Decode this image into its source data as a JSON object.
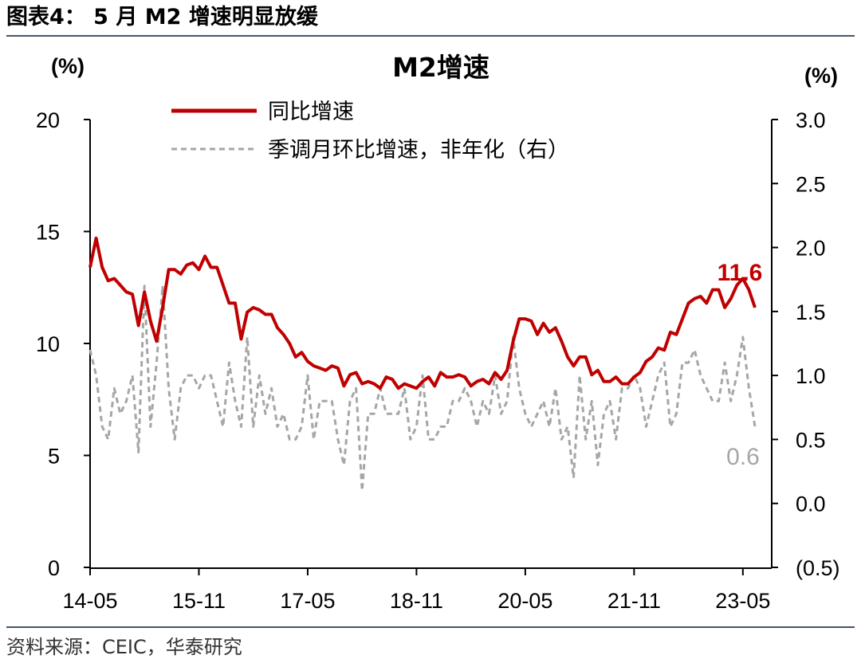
{
  "figure_title": "图表4： 5 月 M2 增速明显放缓",
  "source": "资料来源：CEIC，华泰研究",
  "chart_data": {
    "type": "line",
    "title": "M2增速",
    "y_left_unit": "(%)",
    "y_right_unit": "(%)",
    "y_left_lim": [
      0,
      20
    ],
    "y_left_ticks": [
      "0",
      "5",
      "10",
      "15",
      "20"
    ],
    "y_right_lim": [
      -0.5,
      3.0
    ],
    "y_right_ticks": [
      "(0.5)",
      "0.0",
      "0.5",
      "1.0",
      "1.5",
      "2.0",
      "2.5",
      "3.0"
    ],
    "x_tick_labels": [
      "14-05",
      "15-11",
      "17-05",
      "18-11",
      "20-05",
      "21-11",
      "23-05"
    ],
    "x_start": "2014-05",
    "grid": false,
    "legend_position": "top-left",
    "colors": {
      "yoy": "#c00000",
      "mom": "#a6a6a6",
      "axis": "#000000",
      "rule": "#44546a"
    },
    "series": [
      {
        "name": "同比增速",
        "axis": "left",
        "style": "solid",
        "values": [
          13.4,
          14.7,
          13.4,
          12.8,
          12.9,
          12.6,
          12.3,
          12.2,
          10.8,
          12.3,
          11.0,
          10.1,
          11.6,
          13.3,
          13.3,
          13.1,
          13.5,
          13.6,
          13.3,
          13.9,
          13.4,
          13.4,
          12.6,
          11.8,
          11.8,
          10.2,
          11.4,
          11.6,
          11.5,
          11.3,
          11.3,
          10.7,
          10.4,
          10.0,
          9.4,
          9.6,
          9.2,
          9.0,
          8.9,
          8.8,
          9.0,
          8.9,
          8.1,
          8.6,
          8.7,
          8.2,
          8.3,
          8.2,
          8.0,
          8.5,
          8.4,
          8.0,
          8.2,
          8.1,
          8.0,
          8.3,
          8.5,
          8.1,
          8.7,
          8.5,
          8.5,
          8.6,
          8.5,
          8.1,
          8.3,
          8.4,
          8.2,
          8.7,
          8.4,
          8.8,
          10.1,
          11.1,
          11.1,
          11.0,
          10.4,
          10.9,
          10.5,
          10.7,
          10.1,
          9.4,
          9.0,
          9.4,
          9.4,
          8.6,
          8.8,
          8.3,
          8.3,
          8.5,
          8.2,
          8.2,
          8.5,
          8.7,
          9.2,
          9.4,
          9.8,
          9.7,
          10.5,
          10.4,
          11.1,
          11.8,
          12.0,
          12.1,
          11.8,
          12.4,
          12.4,
          11.6,
          12.0,
          12.6,
          12.9,
          12.4,
          11.6
        ]
      },
      {
        "name": "季调月环比增速，非年化（右）",
        "axis": "right",
        "style": "dashed",
        "values": [
          1.2,
          1.0,
          0.6,
          0.5,
          0.9,
          0.7,
          0.8,
          1.0,
          0.4,
          1.7,
          0.6,
          1.1,
          1.7,
          0.9,
          0.5,
          0.9,
          1.0,
          1.0,
          0.9,
          1.0,
          1.0,
          0.8,
          0.6,
          1.1,
          0.8,
          0.6,
          1.3,
          0.6,
          1.0,
          0.7,
          0.9,
          0.6,
          0.7,
          0.5,
          0.5,
          0.6,
          1.0,
          0.5,
          0.8,
          0.8,
          0.8,
          0.5,
          0.3,
          0.8,
          0.9,
          0.1,
          0.7,
          0.7,
          0.9,
          0.7,
          0.7,
          0.7,
          0.9,
          0.5,
          0.6,
          1.0,
          0.5,
          0.5,
          0.6,
          0.6,
          0.8,
          0.8,
          0.9,
          0.8,
          0.6,
          0.8,
          0.7,
          1.0,
          0.7,
          0.8,
          1.3,
          0.9,
          0.7,
          0.6,
          0.7,
          0.8,
          0.6,
          0.9,
          0.5,
          0.6,
          0.2,
          1.0,
          0.5,
          0.8,
          0.3,
          0.7,
          0.8,
          0.5,
          0.9,
          0.9,
          1.0,
          0.9,
          0.6,
          0.8,
          1.0,
          1.1,
          0.6,
          0.7,
          1.1,
          1.1,
          1.2,
          1.0,
          0.9,
          0.8,
          0.8,
          1.1,
          0.8,
          1.0,
          1.3,
          0.9,
          0.6
        ]
      }
    ],
    "annotations": [
      {
        "text": "11.6",
        "color": "#c00000",
        "series": 0
      },
      {
        "text": "0.6",
        "color": "#a6a6a6",
        "series": 1
      }
    ]
  }
}
